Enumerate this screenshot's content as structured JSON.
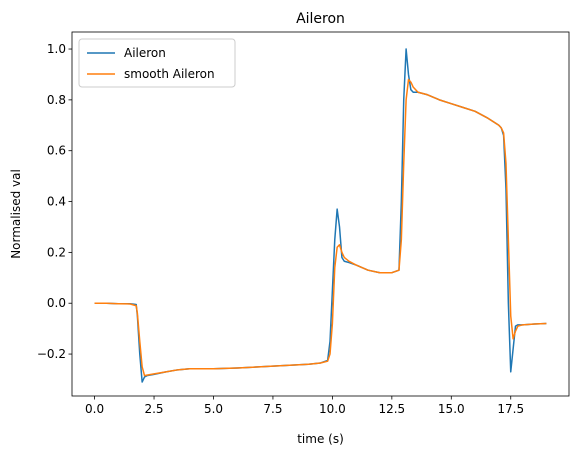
{
  "chart_data": {
    "type": "line",
    "title": "Aileron",
    "xlabel": "time (s)",
    "ylabel": "Normalised val",
    "xlim": [
      -0.95,
      19.95
    ],
    "ylim": [
      -0.365,
      1.067
    ],
    "xticks": [
      0.0,
      2.5,
      5.0,
      7.5,
      10.0,
      12.5,
      15.0,
      17.5
    ],
    "xtick_labels": [
      "0.0",
      "2.5",
      "5.0",
      "7.5",
      "10.0",
      "12.5",
      "15.0",
      "17.5"
    ],
    "yticks": [
      -0.2,
      0.0,
      0.2,
      0.4,
      0.6,
      0.8,
      1.0
    ],
    "ytick_labels": [
      "−0.2",
      "0.0",
      "0.2",
      "0.4",
      "0.6",
      "0.8",
      "1.0"
    ],
    "grid": false,
    "legend_position": "top-left",
    "series": [
      {
        "name": "Aileron",
        "color": "#1f77b4",
        "x": [
          0,
          0.5,
          1.0,
          1.5,
          1.75,
          1.8,
          1.9,
          2.0,
          2.1,
          2.2,
          2.5,
          3.0,
          3.5,
          4.0,
          5.0,
          6.0,
          7.0,
          8.0,
          9.0,
          9.5,
          9.8,
          9.9,
          10.0,
          10.1,
          10.2,
          10.3,
          10.4,
          10.5,
          10.7,
          11.0,
          11.5,
          12.0,
          12.5,
          12.8,
          12.9,
          13.0,
          13.1,
          13.2,
          13.3,
          13.4,
          13.6,
          14.0,
          14.5,
          15.0,
          15.5,
          16.0,
          16.5,
          17.0,
          17.1,
          17.2,
          17.3,
          17.4,
          17.5,
          17.6,
          17.7,
          17.8,
          18.0,
          18.5,
          19.0
        ],
        "y": [
          0.0,
          0.0,
          -0.002,
          -0.002,
          -0.005,
          -0.05,
          -0.2,
          -0.31,
          -0.29,
          -0.285,
          -0.28,
          -0.27,
          -0.262,
          -0.258,
          -0.258,
          -0.255,
          -0.25,
          -0.245,
          -0.24,
          -0.235,
          -0.225,
          -0.15,
          0.05,
          0.25,
          0.37,
          0.3,
          0.18,
          0.165,
          0.16,
          0.15,
          0.13,
          0.12,
          0.12,
          0.13,
          0.4,
          0.8,
          1.0,
          0.9,
          0.84,
          0.83,
          0.83,
          0.82,
          0.8,
          0.785,
          0.77,
          0.755,
          0.73,
          0.7,
          0.69,
          0.66,
          0.45,
          0.0,
          -0.27,
          -0.18,
          -0.09,
          -0.085,
          -0.085,
          -0.082,
          -0.08
        ]
      },
      {
        "name": "smooth Aileron",
        "color": "#ff7f0e",
        "x": [
          0,
          0.5,
          1.0,
          1.5,
          1.75,
          1.8,
          1.9,
          2.0,
          2.1,
          2.2,
          2.5,
          3.0,
          3.5,
          4.0,
          5.0,
          6.0,
          7.0,
          8.0,
          9.0,
          9.5,
          9.8,
          9.9,
          10.0,
          10.1,
          10.2,
          10.3,
          10.4,
          10.5,
          10.7,
          11.0,
          11.5,
          12.0,
          12.5,
          12.8,
          12.9,
          13.0,
          13.1,
          13.2,
          13.3,
          13.4,
          13.6,
          14.0,
          14.5,
          15.0,
          15.5,
          16.0,
          16.5,
          17.0,
          17.1,
          17.2,
          17.3,
          17.4,
          17.5,
          17.6,
          17.7,
          17.8,
          18.0,
          18.5,
          19.0
        ],
        "y": [
          0.0,
          0.0,
          -0.002,
          -0.003,
          -0.01,
          -0.04,
          -0.15,
          -0.25,
          -0.285,
          -0.283,
          -0.278,
          -0.27,
          -0.262,
          -0.258,
          -0.258,
          -0.255,
          -0.25,
          -0.245,
          -0.24,
          -0.235,
          -0.228,
          -0.2,
          -0.08,
          0.14,
          0.22,
          0.23,
          0.2,
          0.18,
          0.165,
          0.15,
          0.13,
          0.12,
          0.12,
          0.13,
          0.25,
          0.55,
          0.8,
          0.88,
          0.87,
          0.85,
          0.83,
          0.82,
          0.8,
          0.785,
          0.77,
          0.755,
          0.73,
          0.7,
          0.69,
          0.67,
          0.55,
          0.25,
          -0.05,
          -0.14,
          -0.11,
          -0.09,
          -0.085,
          -0.082,
          -0.08
        ]
      }
    ]
  }
}
